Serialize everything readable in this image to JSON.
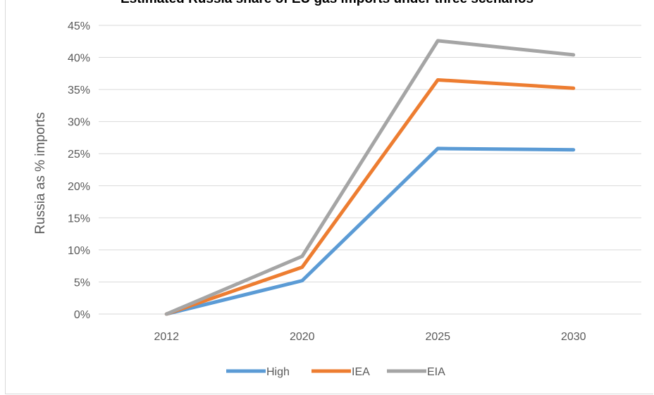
{
  "chart_data": {
    "type": "line",
    "title": "Estimated Russia share of EU gas imports under three scenarios",
    "xlabel": "",
    "ylabel": "Russia as % imports",
    "categories": [
      "2012",
      "2020",
      "2025",
      "2030"
    ],
    "y_ticks": [
      "0%",
      "5%",
      "10%",
      "15%",
      "20%",
      "25%",
      "30%",
      "35%",
      "40%",
      "45%"
    ],
    "ylim": [
      0,
      45
    ],
    "grid": true,
    "legend_position": "bottom",
    "series": [
      {
        "name": "High",
        "color": "#5b9bd5",
        "values": [
          0,
          5.2,
          25.8,
          25.6
        ]
      },
      {
        "name": "IEA",
        "color": "#ed7d31",
        "values": [
          0,
          7.3,
          36.5,
          35.2
        ]
      },
      {
        "name": "EIA",
        "color": "#a5a5a5",
        "values": [
          0,
          9.0,
          42.6,
          40.4
        ]
      }
    ]
  }
}
